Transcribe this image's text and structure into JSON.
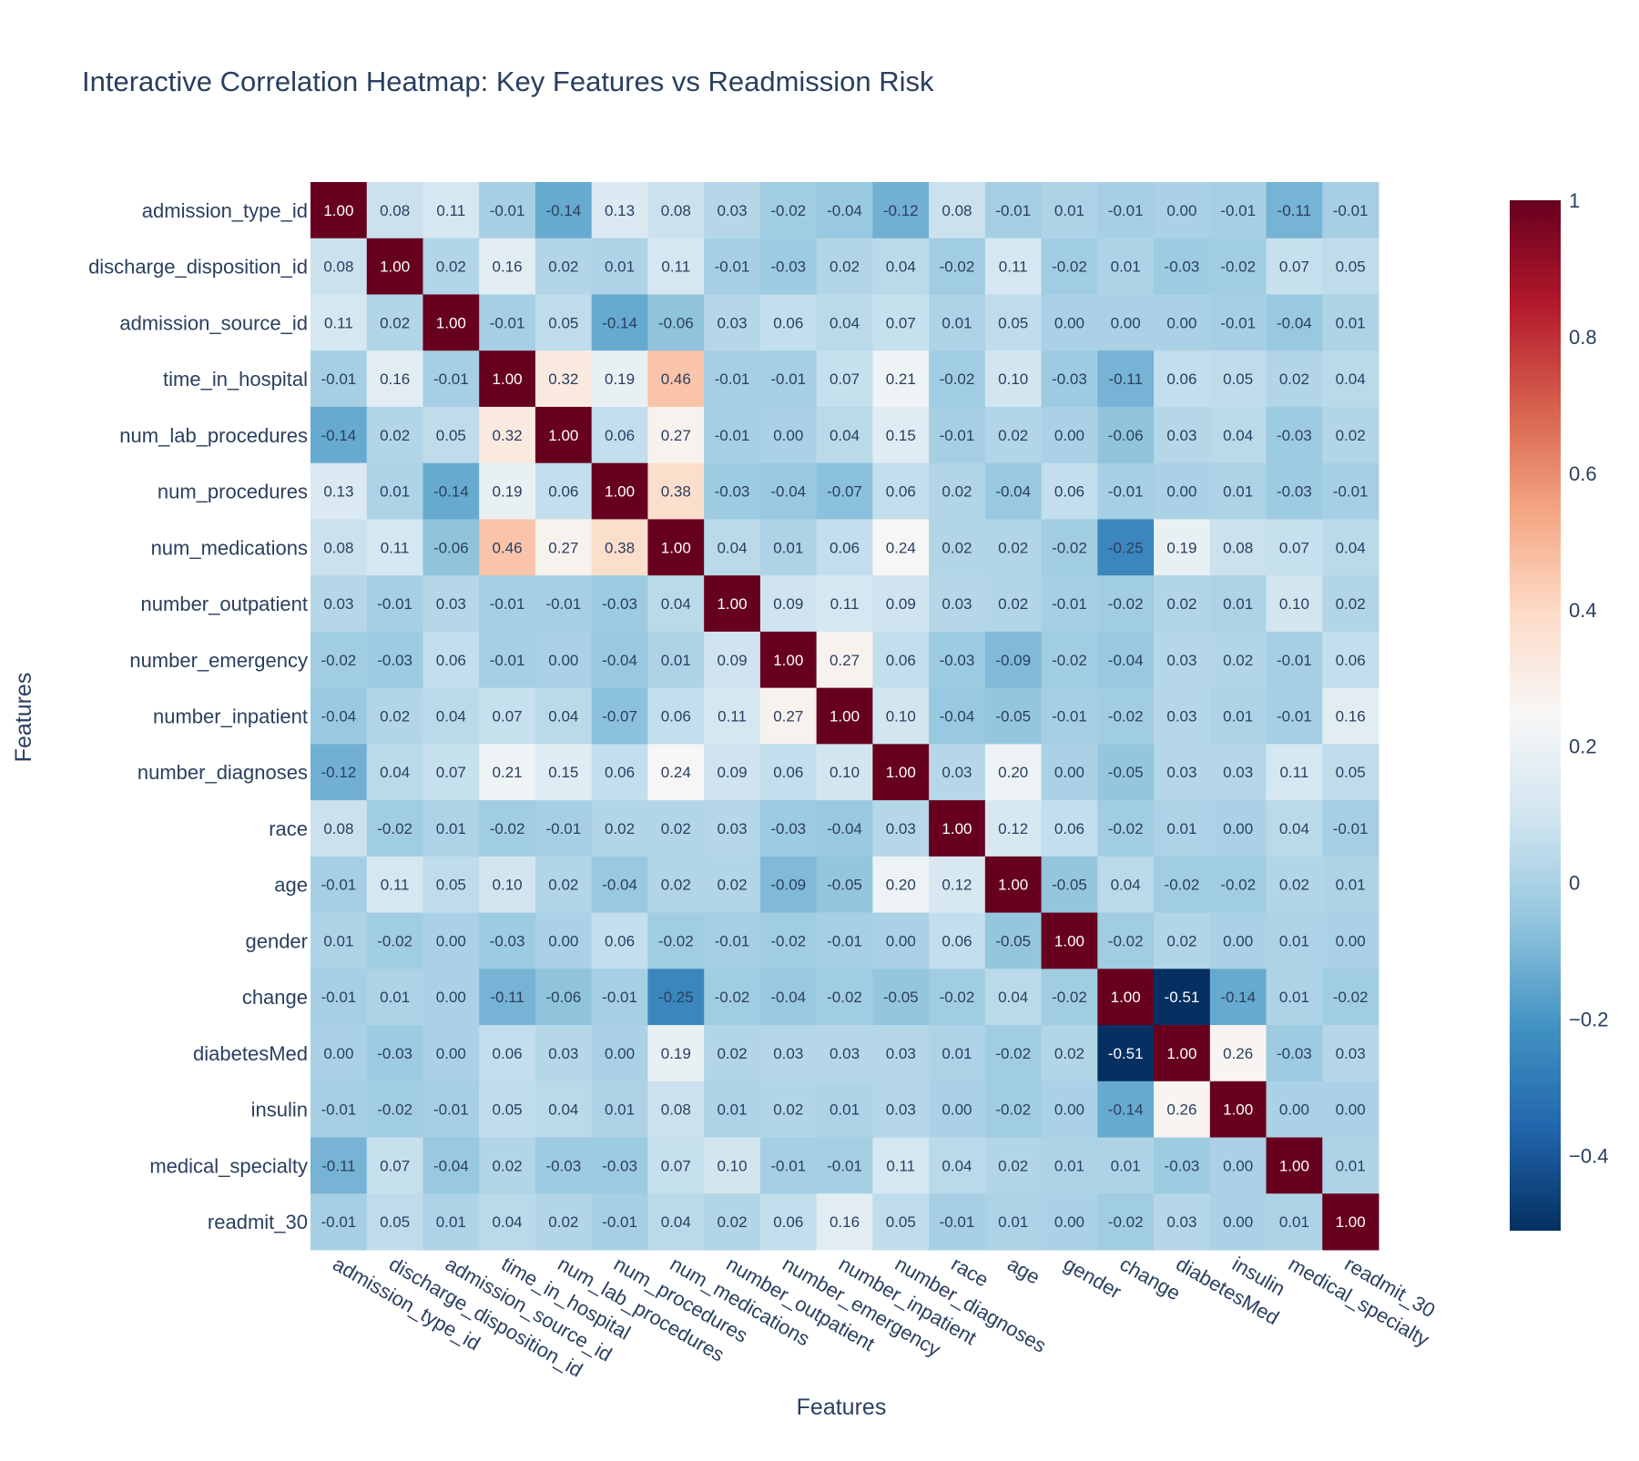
{
  "chart_data": {
    "type": "heatmap",
    "title": "Interactive Correlation Heatmap: Key Features vs Readmission Risk",
    "xlabel": "Features",
    "ylabel": "Features",
    "features": [
      "admission_type_id",
      "discharge_disposition_id",
      "admission_source_id",
      "time_in_hospital",
      "num_lab_procedures",
      "num_procedures",
      "num_medications",
      "number_outpatient",
      "number_emergency",
      "number_inpatient",
      "number_diagnoses",
      "race",
      "age",
      "gender",
      "change",
      "diabetesMed",
      "insulin",
      "medical_specialty",
      "readmit_30"
    ],
    "values": [
      [
        1.0,
        0.08,
        0.11,
        -0.01,
        -0.14,
        0.13,
        0.08,
        0.03,
        -0.02,
        -0.04,
        -0.12,
        0.08,
        -0.01,
        0.01,
        -0.01,
        0.0,
        -0.01,
        -0.11,
        -0.01
      ],
      [
        0.08,
        1.0,
        0.02,
        0.16,
        0.02,
        0.01,
        0.11,
        -0.01,
        -0.03,
        0.02,
        0.04,
        -0.02,
        0.11,
        -0.02,
        0.01,
        -0.03,
        -0.02,
        0.07,
        0.05
      ],
      [
        0.11,
        0.02,
        1.0,
        -0.01,
        0.05,
        -0.14,
        -0.06,
        0.03,
        0.06,
        0.04,
        0.07,
        0.01,
        0.05,
        0.0,
        0.0,
        0.0,
        -0.01,
        -0.04,
        0.01
      ],
      [
        -0.01,
        0.16,
        -0.01,
        1.0,
        0.32,
        0.19,
        0.46,
        -0.01,
        -0.01,
        0.07,
        0.21,
        -0.02,
        0.1,
        -0.03,
        -0.11,
        0.06,
        0.05,
        0.02,
        0.04
      ],
      [
        -0.14,
        0.02,
        0.05,
        0.32,
        1.0,
        0.06,
        0.27,
        -0.01,
        0.0,
        0.04,
        0.15,
        -0.01,
        0.02,
        0.0,
        -0.06,
        0.03,
        0.04,
        -0.03,
        0.02
      ],
      [
        0.13,
        0.01,
        -0.14,
        0.19,
        0.06,
        1.0,
        0.38,
        -0.03,
        -0.04,
        -0.07,
        0.06,
        0.02,
        -0.04,
        0.06,
        -0.01,
        0.0,
        0.01,
        -0.03,
        -0.01
      ],
      [
        0.08,
        0.11,
        -0.06,
        0.46,
        0.27,
        0.38,
        1.0,
        0.04,
        0.01,
        0.06,
        0.24,
        0.02,
        0.02,
        -0.02,
        -0.25,
        0.19,
        0.08,
        0.07,
        0.04
      ],
      [
        0.03,
        -0.01,
        0.03,
        -0.01,
        -0.01,
        -0.03,
        0.04,
        1.0,
        0.09,
        0.11,
        0.09,
        0.03,
        0.02,
        -0.01,
        -0.02,
        0.02,
        0.01,
        0.1,
        0.02
      ],
      [
        -0.02,
        -0.03,
        0.06,
        -0.01,
        0.0,
        -0.04,
        0.01,
        0.09,
        1.0,
        0.27,
        0.06,
        -0.03,
        -0.09,
        -0.02,
        -0.04,
        0.03,
        0.02,
        -0.01,
        0.06
      ],
      [
        -0.04,
        0.02,
        0.04,
        0.07,
        0.04,
        -0.07,
        0.06,
        0.11,
        0.27,
        1.0,
        0.1,
        -0.04,
        -0.05,
        -0.01,
        -0.02,
        0.03,
        0.01,
        -0.01,
        0.16
      ],
      [
        -0.12,
        0.04,
        0.07,
        0.21,
        0.15,
        0.06,
        0.24,
        0.09,
        0.06,
        0.1,
        1.0,
        0.03,
        0.2,
        0.0,
        -0.05,
        0.03,
        0.03,
        0.11,
        0.05
      ],
      [
        0.08,
        -0.02,
        0.01,
        -0.02,
        -0.01,
        0.02,
        0.02,
        0.03,
        -0.03,
        -0.04,
        0.03,
        1.0,
        0.12,
        0.06,
        -0.02,
        0.01,
        0.0,
        0.04,
        -0.01
      ],
      [
        -0.01,
        0.11,
        0.05,
        0.1,
        0.02,
        -0.04,
        0.02,
        0.02,
        -0.09,
        -0.05,
        0.2,
        0.12,
        1.0,
        -0.05,
        0.04,
        -0.02,
        -0.02,
        0.02,
        0.01
      ],
      [
        0.01,
        -0.02,
        0.0,
        -0.03,
        0.0,
        0.06,
        -0.02,
        -0.01,
        -0.02,
        -0.01,
        0.0,
        0.06,
        -0.05,
        1.0,
        -0.02,
        0.02,
        0.0,
        0.01,
        0.0
      ],
      [
        -0.01,
        0.01,
        0.0,
        -0.11,
        -0.06,
        -0.01,
        -0.25,
        -0.02,
        -0.04,
        -0.02,
        -0.05,
        -0.02,
        0.04,
        -0.02,
        1.0,
        -0.51,
        -0.14,
        0.01,
        -0.02
      ],
      [
        0.0,
        -0.03,
        0.0,
        0.06,
        0.03,
        0.0,
        0.19,
        0.02,
        0.03,
        0.03,
        0.03,
        0.01,
        -0.02,
        0.02,
        -0.51,
        1.0,
        0.26,
        -0.03,
        0.03
      ],
      [
        -0.01,
        -0.02,
        -0.01,
        0.05,
        0.04,
        0.01,
        0.08,
        0.01,
        0.02,
        0.01,
        0.03,
        0.0,
        -0.02,
        0.0,
        -0.14,
        0.26,
        1.0,
        0.0,
        0.0
      ],
      [
        -0.11,
        0.07,
        -0.04,
        0.02,
        -0.03,
        -0.03,
        0.07,
        0.1,
        -0.01,
        -0.01,
        0.11,
        0.04,
        0.02,
        0.01,
        0.01,
        -0.03,
        0.0,
        1.0,
        0.01
      ],
      [
        -0.01,
        0.05,
        0.01,
        0.04,
        0.02,
        -0.01,
        0.04,
        0.02,
        0.06,
        0.16,
        0.05,
        -0.01,
        0.01,
        0.0,
        -0.02,
        0.03,
        0.0,
        0.01,
        1.0
      ]
    ],
    "zmin": -0.51,
    "zmax": 1.0,
    "colorscale": [
      "#053061",
      "#2166ac",
      "#4393c3",
      "#92c5de",
      "#d1e5f0",
      "#f7f7f7",
      "#fddbc7",
      "#f4a582",
      "#d6604d",
      "#b2182b",
      "#67001f"
    ],
    "colorbar_ticks": [
      {
        "value": 1,
        "label": "1"
      },
      {
        "value": 0.8,
        "label": "0.8"
      },
      {
        "value": 0.6,
        "label": "0.6"
      },
      {
        "value": 0.4,
        "label": "0.4"
      },
      {
        "value": 0.2,
        "label": "0.2"
      },
      {
        "value": 0,
        "label": "0"
      },
      {
        "value": -0.2,
        "label": "−0.2"
      },
      {
        "value": -0.4,
        "label": "−0.4"
      }
    ],
    "text_color_dark": "#2a3f5f",
    "text_color_light": "#ffffff"
  }
}
